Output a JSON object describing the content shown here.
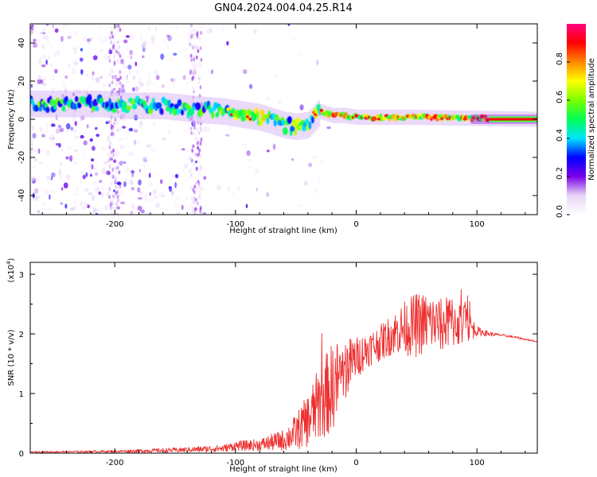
{
  "figure": {
    "title": "GN04.2024.004.04.25.R14"
  },
  "chart_data": [
    {
      "type": "heatmap",
      "name": "spectrogram",
      "xlabel": "Height of straight line (km)",
      "ylabel": "Frequency (Hz)",
      "xlim": [
        -270,
        150
      ],
      "ylim": [
        -50,
        50
      ],
      "x_ticks": [
        -200,
        -100,
        0,
        100
      ],
      "y_ticks": [
        -40,
        -20,
        0,
        20,
        40
      ],
      "colorbar": {
        "label": "Normalized spectral amplitude",
        "range": [
          0,
          1
        ],
        "ticks": [
          "0.0",
          "0.2",
          "0.4",
          "0.6",
          "0.8"
        ],
        "colormap": [
          "#ffffff",
          "#e9d6f7",
          "#7b00e8",
          "#0000ff",
          "#00e5ff",
          "#00ff55",
          "#7dff00",
          "#ffff00",
          "#ff8800",
          "#ff0000",
          "#ff0080"
        ]
      },
      "ridge": {
        "height_km": [
          -270,
          -240,
          -210,
          -190,
          -160,
          -130,
          -110,
          -100,
          -90,
          -80,
          -70,
          -60,
          -50,
          -40,
          -30,
          -20,
          -10,
          0,
          50,
          100,
          150
        ],
        "frequency_hz": [
          8,
          8,
          8,
          7,
          7,
          5,
          4,
          3,
          2,
          1,
          -1,
          -3,
          -4,
          -3,
          4,
          2,
          2,
          1,
          1,
          0.5,
          0
        ]
      }
    },
    {
      "type": "line",
      "name": "snr",
      "xlabel": "Height of straight line (km)",
      "ylabel": "SNR (10 * v/v)",
      "multiplier_label": "(x10",
      "multiplier_exp": "4",
      "xlim": [
        -270,
        150
      ],
      "ylim": [
        0,
        3.2
      ],
      "x_ticks": [
        -200,
        -100,
        0,
        100
      ],
      "y_ticks": [
        0,
        1,
        2,
        3
      ],
      "color": "#ee3030",
      "envelope": {
        "x": [
          -270,
          -200,
          -150,
          -110,
          -100,
          -80,
          -60,
          -50,
          -40,
          -30,
          -20,
          -10,
          0,
          10,
          20,
          30,
          40,
          50,
          60,
          70,
          80,
          90,
          100,
          110,
          120,
          130,
          150
        ],
        "mean": [
          0.02,
          0.03,
          0.05,
          0.08,
          0.12,
          0.14,
          0.22,
          0.35,
          0.55,
          0.85,
          1.1,
          1.4,
          1.6,
          1.75,
          1.85,
          2.0,
          2.1,
          2.15,
          2.2,
          2.15,
          2.2,
          2.15,
          2.05,
          2.0,
          1.98,
          1.95,
          1.87
        ],
        "spread": [
          0.01,
          0.02,
          0.04,
          0.06,
          0.08,
          0.1,
          0.18,
          0.3,
          0.45,
          0.65,
          0.75,
          0.55,
          0.35,
          0.3,
          0.3,
          0.35,
          0.45,
          0.55,
          0.5,
          0.45,
          0.45,
          0.35,
          0.08,
          0.04,
          0.02,
          0.02,
          0.01
        ]
      }
    }
  ]
}
